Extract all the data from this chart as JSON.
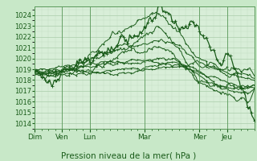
{
  "title": "",
  "xlabel": "Pression niveau de la mer( hPa )",
  "bg_color": "#c8e8c8",
  "plot_bg_color": "#d8eed8",
  "grid_major_color": "#aaccaa",
  "grid_minor_color": "#c0dcc0",
  "line_color": "#1a5c1a",
  "ylim": [
    1013.5,
    1024.8
  ],
  "yticks": [
    1014,
    1015,
    1016,
    1017,
    1018,
    1019,
    1020,
    1021,
    1022,
    1023,
    1024
  ],
  "day_labels": [
    "Dim",
    "Ven",
    "Lun",
    "Mar",
    "Mer",
    "Jeu"
  ],
  "day_positions": [
    0,
    24,
    48,
    96,
    144,
    168
  ],
  "xlim": [
    0,
    192
  ]
}
